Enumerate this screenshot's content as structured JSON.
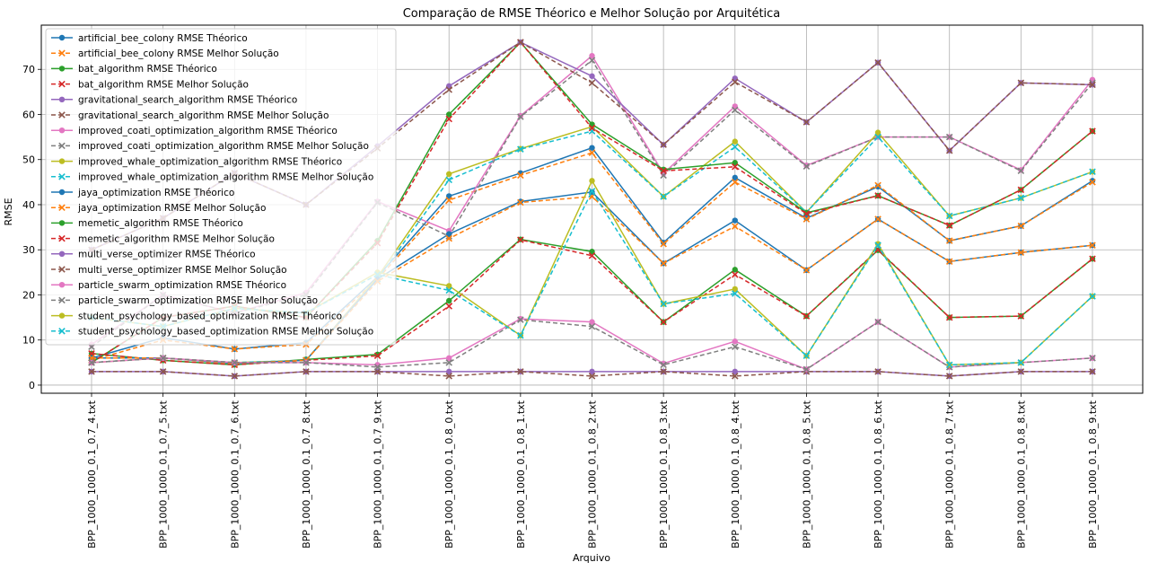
{
  "chart_data": {
    "type": "line",
    "title": "Comparação de RMSE Théorico e Melhor Solução por Arquitética",
    "xlabel": "Arquivo",
    "ylabel": "RMSE",
    "ylim": [
      -1.8,
      79.8
    ],
    "yticks": [
      0,
      10,
      20,
      30,
      40,
      50,
      60,
      70
    ],
    "grid": true,
    "legend_position": "top-left",
    "categories": [
      "BPP_1000_1000_0.1_0.7_4.txt",
      "BPP_1000_1000_0.1_0.7_5.txt",
      "BPP_1000_1000_0.1_0.7_6.txt",
      "BPP_1000_1000_0.1_0.7_8.txt",
      "BPP_1000_1000_0.1_0.7_9.txt",
      "BPP_1000_1000_0.1_0.8_0.txt",
      "BPP_1000_1000_0.1_0.8_1.txt",
      "BPP_1000_1000_0.1_0.8_2.txt",
      "BPP_1000_1000_0.1_0.8_3.txt",
      "BPP_1000_1000_0.1_0.8_4.txt",
      "BPP_1000_1000_0.1_0.8_5.txt",
      "BPP_1000_1000_0.1_0.8_6.txt",
      "BPP_1000_1000_0.1_0.8_7.txt",
      "BPP_1000_1000_0.1_0.8_8.txt",
      "BPP_1000_1000_0.1_0.8_9.txt"
    ],
    "series": [
      {
        "name": "artificial_bee_colony RMSE Théorico",
        "color": "#1f77b4",
        "style": "solid",
        "marker": "o",
        "values": [
          6.0,
          10.5,
          8.0,
          9.4,
          24.0,
          41.9,
          47.0,
          52.6,
          31.6,
          46.0,
          37.0,
          44.0,
          32.0,
          35.3,
          45.3
        ]
      },
      {
        "name": "artificial_bee_colony RMSE Melhor Solução",
        "color": "#ff7f0e",
        "style": "dashed",
        "marker": "x",
        "values": [
          5.5,
          10.0,
          8.0,
          9.0,
          23.5,
          41.0,
          46.5,
          51.5,
          31.3,
          45.0,
          36.8,
          44.3,
          32.0,
          35.3,
          45.0
        ]
      },
      {
        "name": "bat_algorithm RMSE Théorico",
        "color": "#2ca02c",
        "style": "solid",
        "marker": "o",
        "values": [
          7.0,
          5.5,
          4.5,
          5.7,
          6.8,
          18.7,
          32.3,
          29.6,
          14.0,
          25.6,
          15.3,
          29.9,
          15.0,
          15.3,
          28.0
        ]
      },
      {
        "name": "bat_algorithm RMSE Melhor Solução",
        "color": "#d62728",
        "style": "dashed",
        "marker": "x",
        "values": [
          7.0,
          5.5,
          4.5,
          5.5,
          6.5,
          17.5,
          32.2,
          28.7,
          14.0,
          24.5,
          15.3,
          30.0,
          15.0,
          15.3,
          28.0
        ]
      },
      {
        "name": "gravitational_search_algorithm RMSE Théorico",
        "color": "#9467bd",
        "style": "solid",
        "marker": "o",
        "values": [
          3.0,
          3.0,
          2.0,
          3.0,
          3.0,
          3.0,
          3.0,
          3.0,
          3.0,
          3.0,
          3.0,
          3.0,
          2.0,
          3.0,
          3.0
        ]
      },
      {
        "name": "gravitational_search_algorithm RMSE Melhor Solução",
        "color": "#8c564b",
        "style": "dashed",
        "marker": "x",
        "values": [
          3.0,
          3.0,
          2.0,
          3.0,
          3.0,
          2.0,
          3.0,
          2.0,
          3.0,
          2.0,
          3.0,
          3.0,
          2.0,
          3.0,
          3.0
        ]
      },
      {
        "name": "improved_coati_optimization_algorithm RMSE Théorico",
        "color": "#e377c2",
        "style": "solid",
        "marker": "o",
        "values": [
          9.0,
          20.0,
          16.0,
          20.5,
          40.7,
          34.2,
          59.7,
          73.0,
          46.9,
          61.8,
          48.7,
          55.0,
          55.0,
          47.7,
          67.7
        ]
      },
      {
        "name": "improved_coati_optimization_algorithm RMSE Melhor Solução",
        "color": "#7f7f7f",
        "style": "dashed",
        "marker": "x",
        "values": [
          8.5,
          20.0,
          16.0,
          20.0,
          40.5,
          33.0,
          59.5,
          72.0,
          46.5,
          61.0,
          48.5,
          55.0,
          55.0,
          47.5,
          67.0
        ]
      },
      {
        "name": "improved_whale_optimization_algorithm RMSE Théorico",
        "color": "#bcbd22",
        "style": "solid",
        "marker": "o",
        "values": [
          5.0,
          6.0,
          5.0,
          5.5,
          24.0,
          46.8,
          52.4,
          57.3,
          41.8,
          54.0,
          38.3,
          56.0,
          37.5,
          41.5,
          47.3
        ]
      },
      {
        "name": "improved_whale_optimization_algorithm RMSE Melhor Solução",
        "color": "#17becf",
        "style": "dashed",
        "marker": "x",
        "values": [
          5.0,
          6.0,
          5.0,
          5.5,
          23.5,
          45.5,
          52.3,
          56.3,
          41.8,
          52.8,
          38.3,
          55.0,
          37.5,
          41.5,
          47.3
        ]
      },
      {
        "name": "jaya_optimization RMSE Théorico",
        "color": "#1f77b4",
        "style": "solid",
        "marker": "o",
        "values": [
          6.0,
          6.0,
          4.8,
          5.5,
          23.5,
          33.5,
          40.7,
          42.8,
          27.0,
          36.5,
          25.5,
          36.8,
          27.4,
          29.4,
          31.0
        ]
      },
      {
        "name": "jaya_optimization RMSE Melhor Solução",
        "color": "#ff7f0e",
        "style": "dashed",
        "marker": "x",
        "values": [
          6.0,
          6.0,
          4.8,
          5.5,
          23.0,
          32.5,
          40.5,
          41.8,
          27.0,
          35.2,
          25.5,
          36.8,
          27.4,
          29.4,
          31.0
        ]
      },
      {
        "name": "memetic_algorithm RMSE Théorico",
        "color": "#2ca02c",
        "style": "solid",
        "marker": "o",
        "values": [
          5.0,
          15.0,
          17.5,
          15.0,
          32.0,
          60.0,
          76.0,
          57.8,
          47.8,
          49.3,
          38.2,
          42.0,
          35.4,
          43.3,
          56.3
        ]
      },
      {
        "name": "memetic_algorithm RMSE Melhor Solução",
        "color": "#d62728",
        "style": "dashed",
        "marker": "x",
        "values": [
          5.0,
          15.0,
          17.5,
          15.0,
          31.5,
          59.0,
          76.0,
          57.0,
          47.5,
          48.4,
          38.0,
          42.0,
          35.4,
          43.3,
          56.3
        ]
      },
      {
        "name": "multi_verse_optimizer RMSE Théorico",
        "color": "#9467bd",
        "style": "solid",
        "marker": "o",
        "values": [
          30.0,
          37.0,
          47.0,
          40.0,
          53.0,
          66.3,
          76.0,
          68.5,
          53.3,
          68.0,
          58.3,
          71.5,
          52.0,
          67.0,
          66.6
        ]
      },
      {
        "name": "multi_verse_optimizer RMSE Melhor Solução",
        "color": "#8c564b",
        "style": "dashed",
        "marker": "x",
        "values": [
          30.0,
          37.0,
          47.0,
          40.0,
          52.5,
          65.5,
          76.0,
          67.0,
          53.3,
          67.2,
          58.3,
          71.5,
          52.0,
          67.0,
          66.6
        ]
      },
      {
        "name": "particle_swarm_optimization RMSE Théorico",
        "color": "#e377c2",
        "style": "solid",
        "marker": "o",
        "values": [
          5.0,
          6.0,
          5.0,
          5.0,
          4.5,
          6.0,
          14.7,
          14.0,
          4.8,
          9.7,
          3.5,
          14.0,
          4.0,
          5.0,
          6.0
        ]
      },
      {
        "name": "particle_swarm_optimization RMSE Melhor Solução",
        "color": "#7f7f7f",
        "style": "dashed",
        "marker": "x",
        "values": [
          5.0,
          6.0,
          5.0,
          5.0,
          4.0,
          5.0,
          14.5,
          13.0,
          4.5,
          8.5,
          3.5,
          14.0,
          4.0,
          5.0,
          6.0
        ]
      },
      {
        "name": "student_psychology_based_optimization RMSE Théorico",
        "color": "#bcbd22",
        "style": "solid",
        "marker": "o",
        "values": [
          15.0,
          13.0,
          17.0,
          16.0,
          25.0,
          22.0,
          11.0,
          45.3,
          18.0,
          21.3,
          6.5,
          31.3,
          4.5,
          5.0,
          19.7
        ]
      },
      {
        "name": "student_psychology_based_optimization RMSE Melhor Solução",
        "color": "#17becf",
        "style": "dashed",
        "marker": "x",
        "values": [
          15.0,
          13.0,
          17.0,
          16.0,
          24.5,
          21.0,
          11.0,
          43.0,
          18.0,
          20.3,
          6.5,
          31.0,
          4.5,
          5.0,
          19.7
        ]
      }
    ]
  }
}
